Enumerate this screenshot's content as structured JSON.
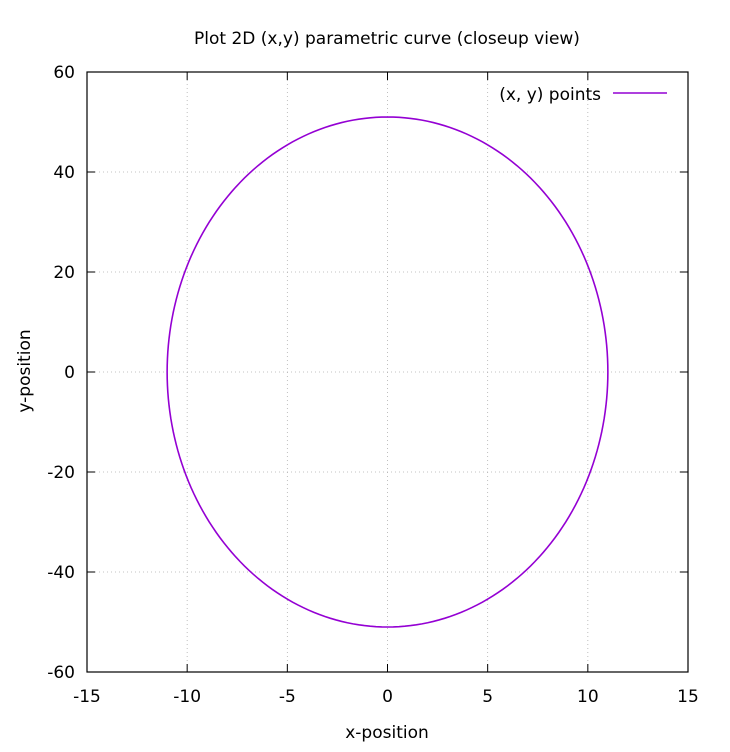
{
  "chart_data": {
    "type": "line",
    "title": "Plot 2D (x,y) parametric curve (closeup view)",
    "xlabel": "x-position",
    "ylabel": "y-position",
    "xlim": [
      -15,
      15
    ],
    "ylim": [
      -60,
      60
    ],
    "xticks": [
      -15,
      -10,
      -5,
      0,
      5,
      10,
      15
    ],
    "yticks": [
      -60,
      -40,
      -20,
      0,
      20,
      40,
      60
    ],
    "grid": true,
    "legend": "top-right",
    "series": [
      {
        "name": "(x, y) points",
        "color": "#9400d3",
        "curve": "ellipse",
        "center": [
          0,
          0
        ],
        "semi_axis_x": 11,
        "semi_axis_y": 51,
        "x": [
          11,
          10.16,
          7.78,
          4.21,
          0,
          -4.21,
          -7.78,
          -10.16,
          -11,
          -10.16,
          -7.78,
          -4.21,
          0,
          4.21,
          7.78,
          10.16,
          11
        ],
        "y": [
          0,
          19.52,
          36.06,
          47.12,
          51,
          47.12,
          36.06,
          19.52,
          0,
          -19.52,
          -36.06,
          -47.12,
          -51,
          -47.12,
          -36.06,
          -19.52,
          0
        ]
      }
    ]
  }
}
